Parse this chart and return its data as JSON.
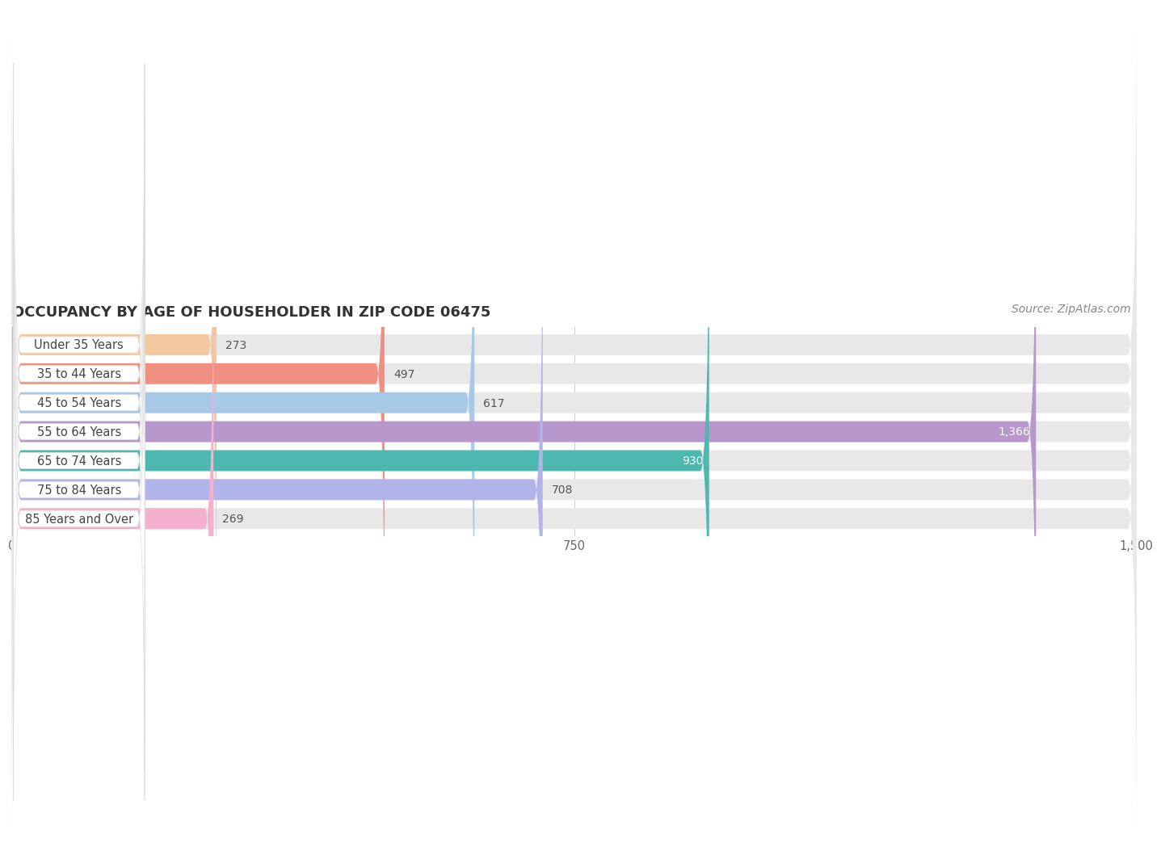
{
  "title": "OCCUPANCY BY AGE OF HOUSEHOLDER IN ZIP CODE 06475",
  "source": "Source: ZipAtlas.com",
  "categories": [
    "Under 35 Years",
    "35 to 44 Years",
    "45 to 54 Years",
    "55 to 64 Years",
    "65 to 74 Years",
    "75 to 84 Years",
    "85 Years and Over"
  ],
  "values": [
    273,
    497,
    617,
    1366,
    930,
    708,
    269
  ],
  "bar_colors": [
    "#f5c9a0",
    "#f09080",
    "#a8c8e8",
    "#b898cc",
    "#4db8b0",
    "#b0b4e8",
    "#f4b0cc"
  ],
  "bar_bg_color": "#e8e8e8",
  "label_bg_color": "#ffffff",
  "xlim": [
    0,
    1500
  ],
  "xticks": [
    0,
    750,
    1500
  ],
  "background_color": "#ffffff",
  "title_fontsize": 13,
  "label_fontsize": 10.5,
  "value_fontsize": 10,
  "source_fontsize": 10,
  "bar_height": 0.72,
  "bar_gap": 0.28
}
